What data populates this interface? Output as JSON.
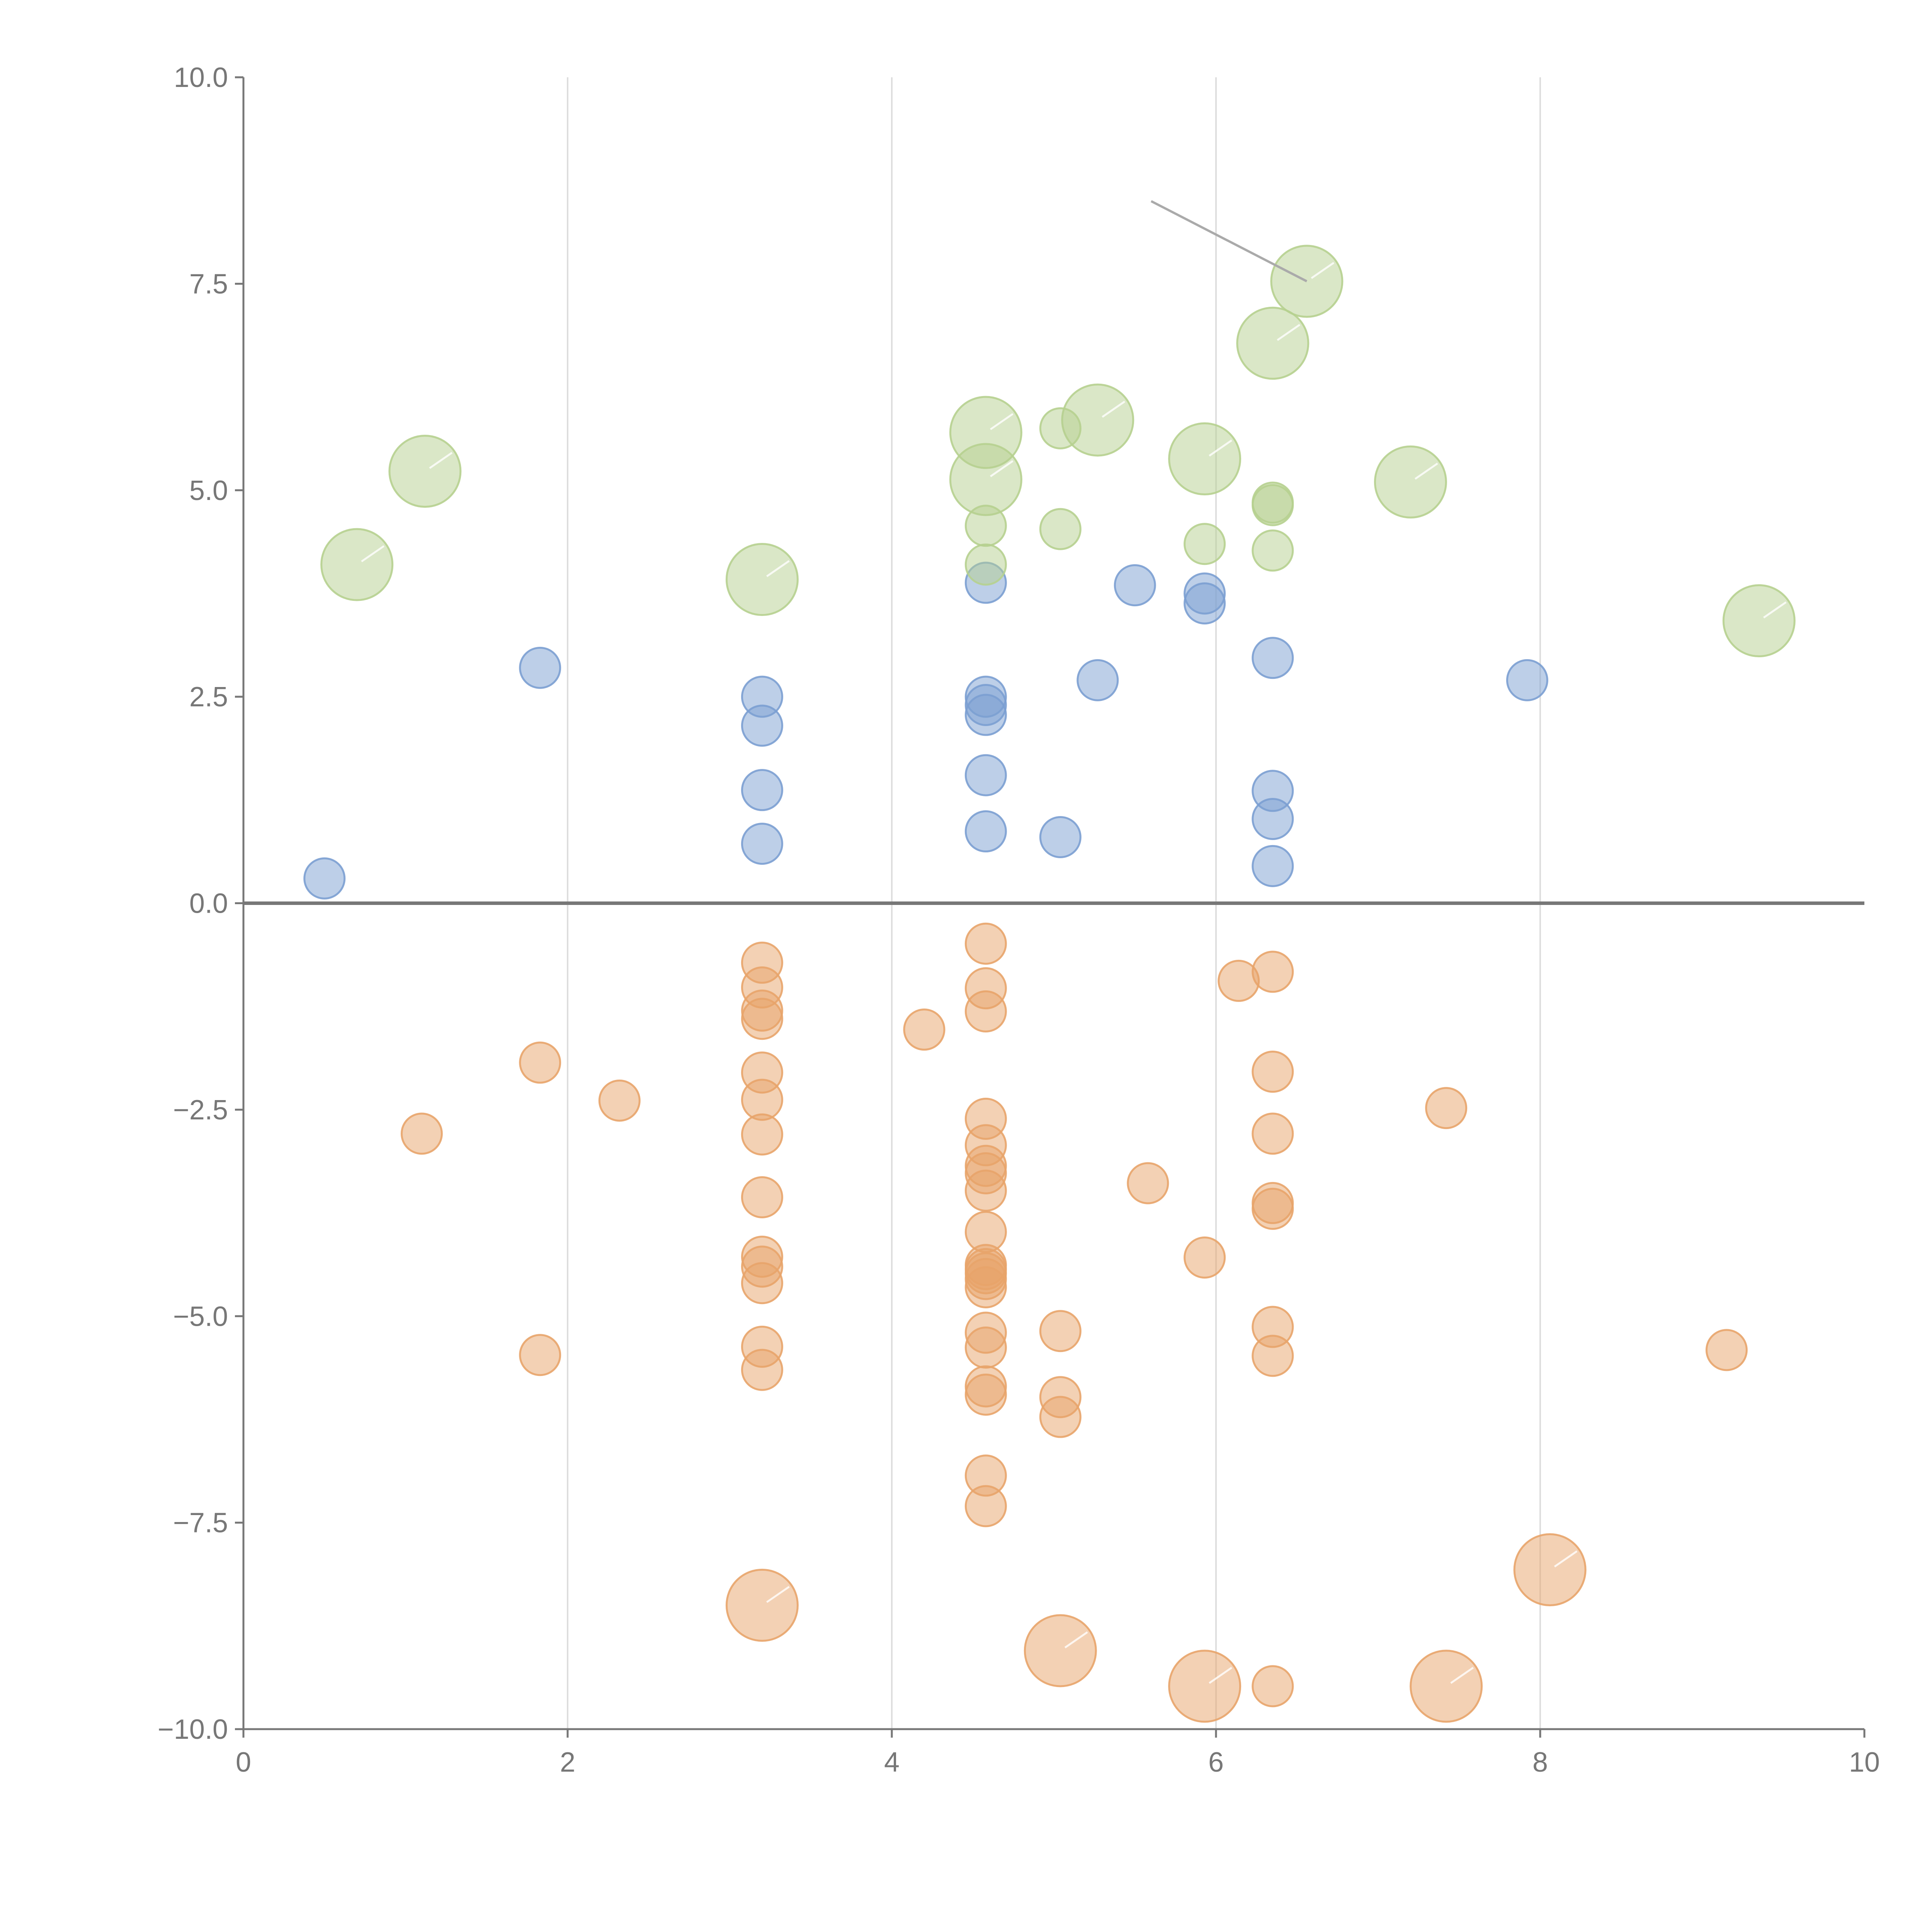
{
  "chart_data": {
    "type": "scatter",
    "title": "",
    "xlabel": "",
    "ylabel": "",
    "xlim": [
      0,
      10
    ],
    "ylim": [
      -10,
      10
    ],
    "grid": "vertical",
    "x_ticks": [
      "0",
      "2",
      "4",
      "6",
      "8",
      "10"
    ],
    "y_ticks": [
      "−10.0",
      "−7.5",
      "−5.0",
      "−2.5",
      "0.0",
      "2.5",
      "5.0",
      "7.5",
      "10.0"
    ],
    "colors": {
      "blue": "#7b9fd1",
      "orange": "#e8a46a",
      "green": "#b6d08f"
    },
    "series": [
      {
        "name": "blue",
        "color": "#7b9fd1",
        "size": "small",
        "points": [
          [
            0.5,
            0.3
          ],
          [
            1.83,
            2.85
          ],
          [
            3.2,
            2.5
          ],
          [
            3.2,
            2.15
          ],
          [
            3.2,
            1.37
          ],
          [
            3.2,
            0.72
          ],
          [
            4.58,
            3.88
          ],
          [
            4.58,
            2.5
          ],
          [
            4.58,
            2.4
          ],
          [
            4.58,
            2.28
          ],
          [
            4.58,
            1.55
          ],
          [
            4.58,
            0.87
          ],
          [
            5.04,
            0.8
          ],
          [
            5.27,
            2.7
          ],
          [
            5.5,
            3.85
          ],
          [
            5.93,
            3.75
          ],
          [
            5.93,
            3.63
          ],
          [
            6.35,
            2.97
          ],
          [
            6.35,
            1.36
          ],
          [
            6.35,
            1.02
          ],
          [
            6.35,
            0.45
          ],
          [
            7.92,
            2.7
          ]
        ]
      },
      {
        "name": "orange",
        "color": "#e8a46a",
        "size": "mixed",
        "points": [
          [
            1.1,
            -2.79,
            "s"
          ],
          [
            1.83,
            -1.93,
            "s"
          ],
          [
            1.83,
            -5.47,
            "s"
          ],
          [
            2.32,
            -2.39,
            "s"
          ],
          [
            3.2,
            -0.72,
            "s"
          ],
          [
            3.2,
            -1.02,
            "s"
          ],
          [
            3.2,
            -1.3,
            "s"
          ],
          [
            3.2,
            -1.4,
            "s"
          ],
          [
            3.2,
            -2.05,
            "s"
          ],
          [
            3.2,
            -2.38,
            "s"
          ],
          [
            3.2,
            -2.8,
            "s"
          ],
          [
            3.2,
            -3.56,
            "s"
          ],
          [
            3.2,
            -4.28,
            "s"
          ],
          [
            3.2,
            -4.4,
            "s"
          ],
          [
            3.2,
            -4.6,
            "s"
          ],
          [
            3.2,
            -5.37,
            "s"
          ],
          [
            3.2,
            -5.65,
            "s"
          ],
          [
            4.2,
            -1.53,
            "s"
          ],
          [
            4.58,
            -0.49,
            "s"
          ],
          [
            4.58,
            -1.03,
            "s"
          ],
          [
            4.58,
            -1.31,
            "s"
          ],
          [
            4.58,
            -2.61,
            "s"
          ],
          [
            4.58,
            -2.93,
            "s"
          ],
          [
            4.58,
            -3.18,
            "s"
          ],
          [
            4.58,
            -3.27,
            "s"
          ],
          [
            4.58,
            -3.48,
            "s"
          ],
          [
            4.58,
            -3.98,
            "s"
          ],
          [
            4.58,
            -4.38,
            "s"
          ],
          [
            4.58,
            -4.43,
            "s"
          ],
          [
            4.58,
            -4.48,
            "s"
          ],
          [
            4.58,
            -4.55,
            "s"
          ],
          [
            4.58,
            -4.65,
            "s"
          ],
          [
            4.58,
            -5.2,
            "s"
          ],
          [
            4.58,
            -5.38,
            "s"
          ],
          [
            4.58,
            -5.85,
            "s"
          ],
          [
            4.58,
            -5.95,
            "s"
          ],
          [
            4.58,
            -6.93,
            "s"
          ],
          [
            4.58,
            -7.3,
            "s"
          ],
          [
            5.04,
            -5.18,
            "s"
          ],
          [
            5.04,
            -5.98,
            "s"
          ],
          [
            5.04,
            -6.22,
            "s"
          ],
          [
            5.58,
            -3.39,
            "s"
          ],
          [
            5.93,
            -4.29,
            "s"
          ],
          [
            6.14,
            -0.94,
            "s"
          ],
          [
            6.35,
            -0.83,
            "s"
          ],
          [
            6.35,
            -2.04,
            "s"
          ],
          [
            6.35,
            -2.79,
            "s"
          ],
          [
            6.35,
            -3.63,
            "s"
          ],
          [
            6.35,
            -3.7,
            "s"
          ],
          [
            6.35,
            -5.13,
            "s"
          ],
          [
            6.35,
            -5.48,
            "s"
          ],
          [
            6.35,
            -9.48,
            "s"
          ],
          [
            7.42,
            -2.48,
            "s"
          ],
          [
            9.15,
            -5.41,
            "s"
          ],
          [
            3.2,
            -8.5,
            "l"
          ],
          [
            5.04,
            -9.05,
            "l"
          ],
          [
            5.93,
            -9.48,
            "l"
          ],
          [
            7.42,
            -9.48,
            "l"
          ],
          [
            8.06,
            -8.07,
            "l"
          ]
        ]
      },
      {
        "name": "green",
        "color": "#b6d08f",
        "size": "mixed",
        "points": [
          [
            0.7,
            4.1,
            "l"
          ],
          [
            1.12,
            5.23,
            "l"
          ],
          [
            3.2,
            3.92,
            "l"
          ],
          [
            4.58,
            5.7,
            "l"
          ],
          [
            4.58,
            5.13,
            "l"
          ],
          [
            5.27,
            5.85,
            "l"
          ],
          [
            5.93,
            5.38,
            "l"
          ],
          [
            6.35,
            6.78,
            "l"
          ],
          [
            6.56,
            7.53,
            "l"
          ],
          [
            7.2,
            5.1,
            "l"
          ],
          [
            9.35,
            3.42,
            "l"
          ],
          [
            4.58,
            4.57,
            "s"
          ],
          [
            4.58,
            4.1,
            "s"
          ],
          [
            5.04,
            5.75,
            "s"
          ],
          [
            5.04,
            4.53,
            "s"
          ],
          [
            5.93,
            4.35,
            "s"
          ],
          [
            6.35,
            4.85,
            "s"
          ],
          [
            6.35,
            4.82,
            "s"
          ],
          [
            6.35,
            4.27,
            "s"
          ]
        ]
      }
    ],
    "annotation": {
      "from": [
        5.6,
        8.5
      ],
      "to": [
        6.56,
        7.53
      ]
    }
  }
}
